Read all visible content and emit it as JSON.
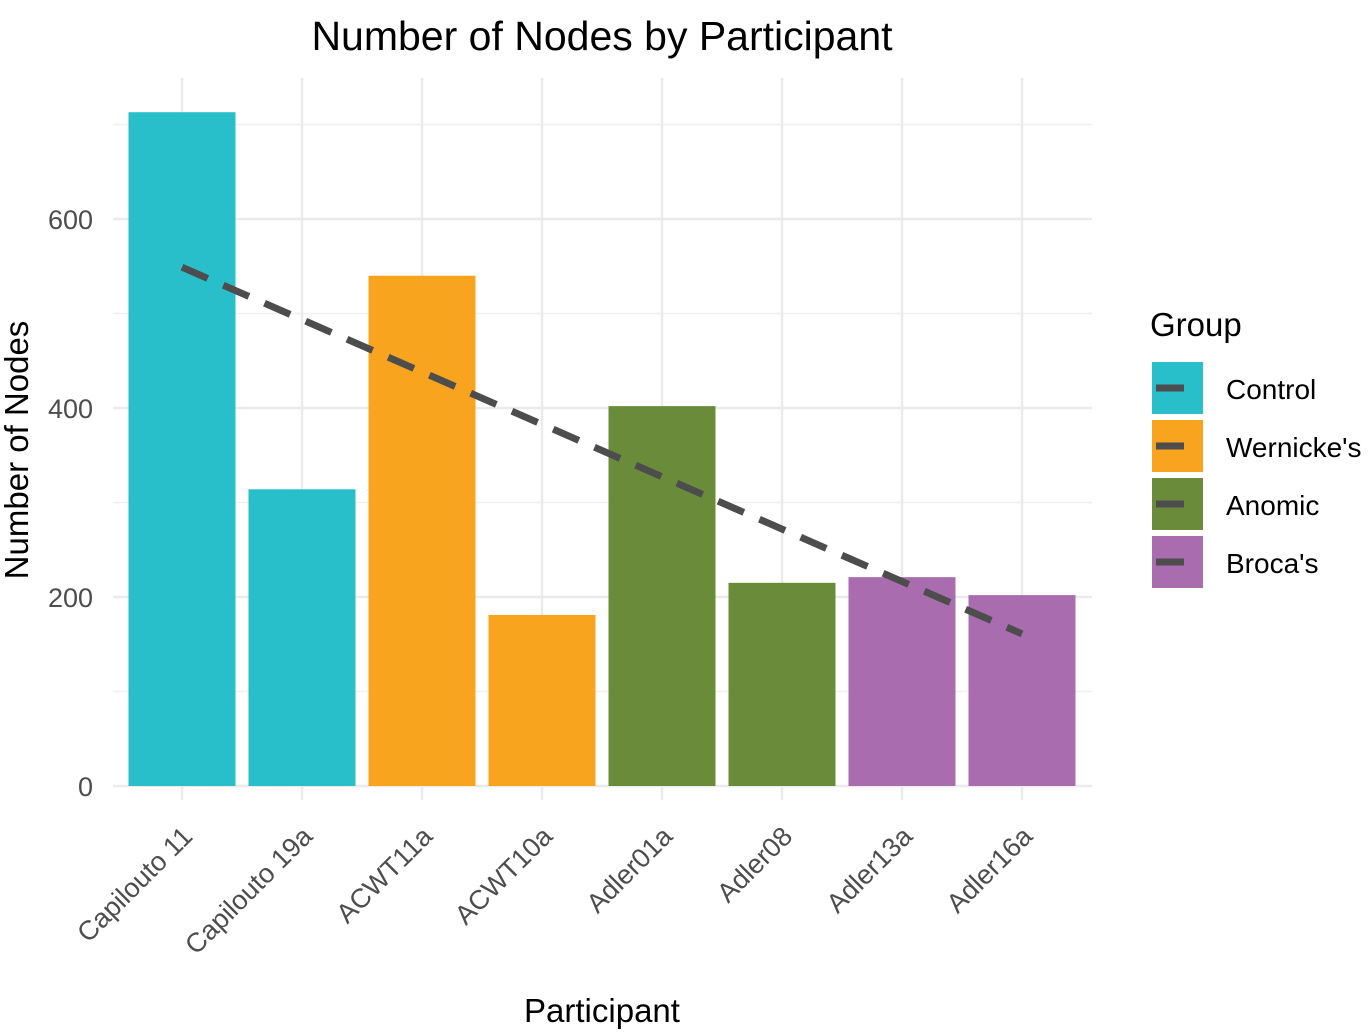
{
  "chart_data": {
    "type": "bar",
    "title": "Number of Nodes by Participant",
    "xlabel": "Participant",
    "ylabel": "Number of Nodes",
    "categories": [
      "Capilouto 11",
      "Capilouto 19a",
      "ACWT11a",
      "ACWT10a",
      "Adler01a",
      "Adler08",
      "Adler13a",
      "Adler16a"
    ],
    "values": [
      713,
      314,
      540,
      181,
      402,
      215,
      221,
      202
    ],
    "groups": [
      "Control",
      "Control",
      "Wernicke's",
      "Wernicke's",
      "Anomic",
      "Anomic",
      "Broca's",
      "Broca's"
    ],
    "yticks": [
      0,
      200,
      400,
      600
    ],
    "ylim": [
      0,
      750
    ],
    "grid": true,
    "trend_line": {
      "style": "dashed",
      "color": "#4d4d4d",
      "start": 549,
      "end": 161
    },
    "legend": {
      "title": "Group",
      "position": "right",
      "entries": [
        {
          "label": "Control",
          "color": "#29BFCA"
        },
        {
          "label": "Wernicke's",
          "color": "#F8A41E"
        },
        {
          "label": "Anomic",
          "color": "#6A8C3A"
        },
        {
          "label": "Broca's",
          "color": "#A86CAF"
        }
      ]
    }
  }
}
